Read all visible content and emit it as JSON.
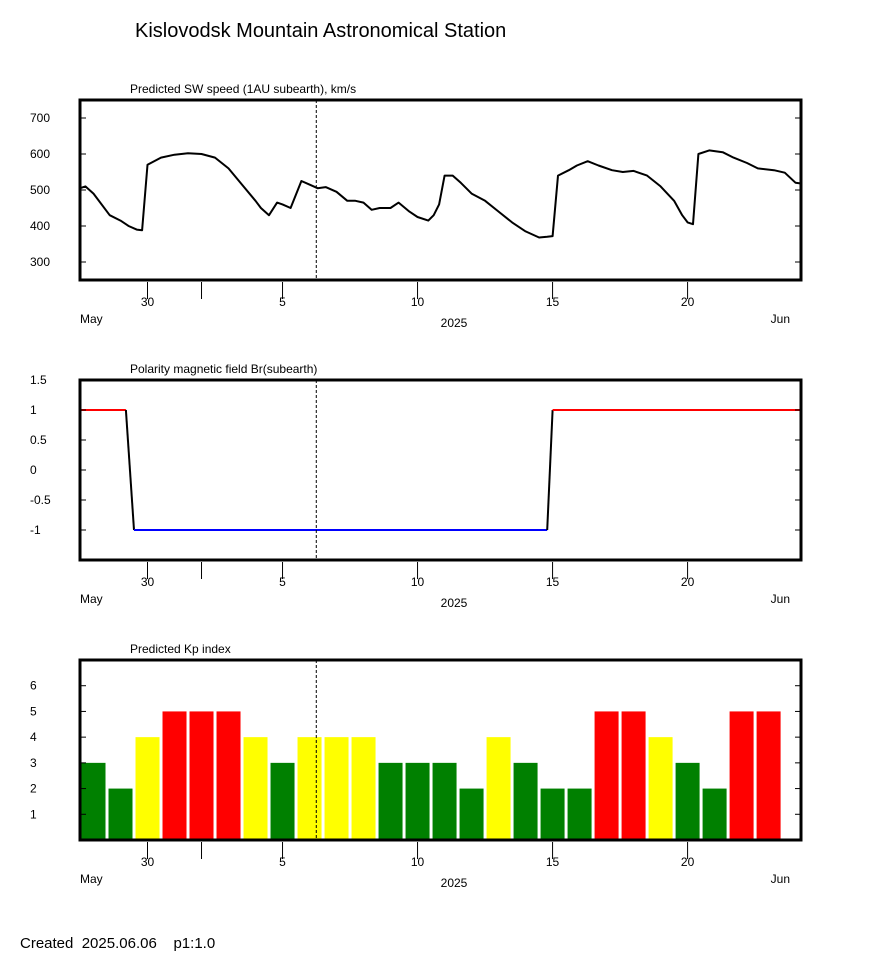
{
  "header": {
    "title": "Kislovodsk Mountain Astronomical Station"
  },
  "footer": {
    "created_label": "Created",
    "created_date": "2025.06.06",
    "page_label": "p1:1.0"
  },
  "x_axis": {
    "start_day": 27.5,
    "end_day": 54.2,
    "ticks": [
      {
        "day": 30,
        "label": "30"
      },
      {
        "day": 32,
        "label": ""
      },
      {
        "day": 35,
        "label": "5"
      },
      {
        "day": 40,
        "label": "10"
      },
      {
        "day": 45,
        "label": "15"
      },
      {
        "day": 50,
        "label": "20"
      }
    ],
    "left_month": "May",
    "center_year": "2025",
    "right_month": "Jun",
    "current_time_day": 36.25
  },
  "chart_data": [
    {
      "type": "line",
      "title": "Predicted SW speed (1AU subearth), km/s",
      "ylim": [
        250,
        750
      ],
      "yticks": [
        300,
        400,
        500,
        600,
        700
      ],
      "series": [
        {
          "color": "#000000",
          "x": [
            27.5,
            27.7,
            28.0,
            28.6,
            29.0,
            29.3,
            29.6,
            29.8,
            30.0,
            30.5,
            31.0,
            31.5,
            32.0,
            32.5,
            33.0,
            33.5,
            34.0,
            34.2,
            34.5,
            34.8,
            35.0,
            35.3,
            35.7,
            36.0,
            36.3,
            36.6,
            37.0,
            37.4,
            37.7,
            38.0,
            38.3,
            38.6,
            39.0,
            39.3,
            39.7,
            40.0,
            40.4,
            40.6,
            40.8,
            41.0,
            41.3,
            41.6,
            42.0,
            42.5,
            43.0,
            43.5,
            44.0,
            44.5,
            44.8,
            45.0,
            45.2,
            45.6,
            45.9,
            46.3,
            46.7,
            47.2,
            47.6,
            48.0,
            48.5,
            49.0,
            49.5,
            49.8,
            50.0,
            50.2,
            50.4,
            50.8,
            51.3,
            51.7,
            52.2,
            52.6,
            53.2,
            53.6,
            54.0,
            54.2
          ],
          "y": [
            505,
            510,
            490,
            430,
            415,
            400,
            390,
            388,
            570,
            590,
            598,
            602,
            600,
            590,
            560,
            515,
            470,
            450,
            430,
            465,
            460,
            450,
            525,
            515,
            505,
            508,
            495,
            470,
            470,
            465,
            445,
            450,
            450,
            465,
            440,
            425,
            415,
            430,
            460,
            540,
            540,
            520,
            490,
            470,
            440,
            410,
            385,
            368,
            370,
            372,
            540,
            555,
            568,
            580,
            568,
            555,
            550,
            553,
            540,
            510,
            470,
            430,
            410,
            405,
            600,
            610,
            605,
            590,
            575,
            560,
            555,
            548,
            520,
            518
          ]
        }
      ]
    },
    {
      "type": "line",
      "title": "Polarity magnetic field  Br(subearth)",
      "ylim": [
        -1.5,
        1.5
      ],
      "yticks": [
        1.5,
        1,
        0.5,
        0,
        -0.5,
        -1
      ],
      "ytick_labels": [
        "1.5",
        "1",
        "0.5",
        "0",
        "-0.5",
        "-1"
      ],
      "series": [
        {
          "color": "#ff0000",
          "x": [
            27.5,
            29.2
          ],
          "y": [
            1,
            1
          ]
        },
        {
          "color": "#000000",
          "x": [
            29.2,
            29.5
          ],
          "y": [
            1,
            -1
          ]
        },
        {
          "color": "#0000ff",
          "x": [
            29.5,
            44.8
          ],
          "y": [
            -1,
            -1
          ]
        },
        {
          "color": "#000000",
          "x": [
            44.8,
            45.0
          ],
          "y": [
            -1,
            1
          ]
        },
        {
          "color": "#ff0000",
          "x": [
            45.0,
            54.2
          ],
          "y": [
            1,
            1
          ]
        }
      ]
    },
    {
      "type": "bar",
      "title": "Predicted Kp index",
      "ylim": [
        0,
        7
      ],
      "yticks": [
        1,
        2,
        3,
        4,
        5,
        6
      ],
      "colors": {
        "low": "#008000",
        "mid": "#ffff00",
        "high": "#ff0000"
      },
      "bars": [
        {
          "day": 27.5,
          "value": 3,
          "level": "low"
        },
        {
          "day": 28.5,
          "value": 2,
          "level": "low"
        },
        {
          "day": 29.5,
          "value": 4,
          "level": "mid"
        },
        {
          "day": 30.5,
          "value": 5,
          "level": "high"
        },
        {
          "day": 31.5,
          "value": 5,
          "level": "high"
        },
        {
          "day": 32.5,
          "value": 5,
          "level": "high"
        },
        {
          "day": 33.5,
          "value": 4,
          "level": "mid"
        },
        {
          "day": 34.5,
          "value": 3,
          "level": "low"
        },
        {
          "day": 35.5,
          "value": 4,
          "level": "mid"
        },
        {
          "day": 36.5,
          "value": 4,
          "level": "mid"
        },
        {
          "day": 37.5,
          "value": 4,
          "level": "mid"
        },
        {
          "day": 38.5,
          "value": 3,
          "level": "low"
        },
        {
          "day": 39.5,
          "value": 3,
          "level": "low"
        },
        {
          "day": 40.5,
          "value": 3,
          "level": "low"
        },
        {
          "day": 41.5,
          "value": 2,
          "level": "low"
        },
        {
          "day": 42.5,
          "value": 4,
          "level": "mid"
        },
        {
          "day": 43.5,
          "value": 3,
          "level": "low"
        },
        {
          "day": 44.5,
          "value": 2,
          "level": "low"
        },
        {
          "day": 45.5,
          "value": 2,
          "level": "low"
        },
        {
          "day": 46.5,
          "value": 5,
          "level": "high"
        },
        {
          "day": 47.5,
          "value": 5,
          "level": "high"
        },
        {
          "day": 48.5,
          "value": 4,
          "level": "mid"
        },
        {
          "day": 49.5,
          "value": 3,
          "level": "low"
        },
        {
          "day": 50.5,
          "value": 2,
          "level": "low"
        },
        {
          "day": 51.5,
          "value": 5,
          "level": "high"
        },
        {
          "day": 52.5,
          "value": 5,
          "level": "high"
        }
      ]
    }
  ]
}
